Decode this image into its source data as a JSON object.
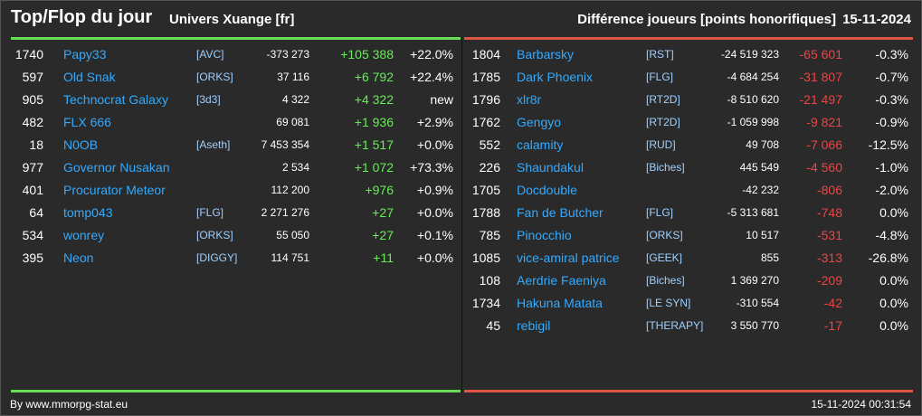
{
  "header": {
    "title": "Top/Flop du jour",
    "universe": "Univers Xuange [fr]",
    "metric": "Différence joueurs [points honorifiques]",
    "date": "15-11-2024"
  },
  "colors": {
    "positive": "#66ee55",
    "negative": "#ee4444",
    "name": "#33aaff"
  },
  "top": [
    {
      "rank": "1740",
      "name": "Papy33",
      "ally": "[AVC]",
      "points": "-373 273",
      "diff": "+105 388",
      "pct": "+22.0%"
    },
    {
      "rank": "597",
      "name": "Old Snak",
      "ally": "[ORKS]",
      "points": "37 116",
      "diff": "+6 792",
      "pct": "+22.4%"
    },
    {
      "rank": "905",
      "name": "Technocrat Galaxy",
      "ally": "[3d3]",
      "points": "4 322",
      "diff": "+4 322",
      "pct": "new"
    },
    {
      "rank": "482",
      "name": "FLX 666",
      "ally": "",
      "points": "69 081",
      "diff": "+1 936",
      "pct": "+2.9%"
    },
    {
      "rank": "18",
      "name": "N0OB",
      "ally": "[Aseth]",
      "points": "7 453 354",
      "diff": "+1 517",
      "pct": "+0.0%"
    },
    {
      "rank": "977",
      "name": "Governor Nusakan",
      "ally": "",
      "points": "2 534",
      "diff": "+1 072",
      "pct": "+73.3%"
    },
    {
      "rank": "401",
      "name": "Procurator Meteor",
      "ally": "",
      "points": "112 200",
      "diff": "+976",
      "pct": "+0.9%"
    },
    {
      "rank": "64",
      "name": "tomp043",
      "ally": "[FLG]",
      "points": "2 271 276",
      "diff": "+27",
      "pct": "+0.0%"
    },
    {
      "rank": "534",
      "name": "wonrey",
      "ally": "[ORKS]",
      "points": "55 050",
      "diff": "+27",
      "pct": "+0.1%"
    },
    {
      "rank": "395",
      "name": "Neon",
      "ally": "[DIGGY]",
      "points": "114 751",
      "diff": "+11",
      "pct": "+0.0%"
    }
  ],
  "flop": [
    {
      "rank": "1804",
      "name": "Barbarsky",
      "ally": "[RST]",
      "points": "-24 519 323",
      "diff": "-65 601",
      "pct": "-0.3%"
    },
    {
      "rank": "1785",
      "name": "Dark Phoenix",
      "ally": "[FLG]",
      "points": "-4 684 254",
      "diff": "-31 807",
      "pct": "-0.7%"
    },
    {
      "rank": "1796",
      "name": "xlr8r",
      "ally": "[RT2D]",
      "points": "-8 510 620",
      "diff": "-21 497",
      "pct": "-0.3%"
    },
    {
      "rank": "1762",
      "name": "Gengyo",
      "ally": "[RT2D]",
      "points": "-1 059 998",
      "diff": "-9 821",
      "pct": "-0.9%"
    },
    {
      "rank": "552",
      "name": "calamity",
      "ally": "[RUD]",
      "points": "49 708",
      "diff": "-7 066",
      "pct": "-12.5%"
    },
    {
      "rank": "226",
      "name": "Shaundakul",
      "ally": "[Biches]",
      "points": "445 549",
      "diff": "-4 560",
      "pct": "-1.0%"
    },
    {
      "rank": "1705",
      "name": "Docdouble",
      "ally": "",
      "points": "-42 232",
      "diff": "-806",
      "pct": "-2.0%"
    },
    {
      "rank": "1788",
      "name": "Fan de Butcher",
      "ally": "[FLG]",
      "points": "-5 313 681",
      "diff": "-748",
      "pct": "0.0%"
    },
    {
      "rank": "785",
      "name": "Pinocchio",
      "ally": "[ORKS]",
      "points": "10 517",
      "diff": "-531",
      "pct": "-4.8%"
    },
    {
      "rank": "1085",
      "name": "vice-amiral patrice",
      "ally": "[GEEK]",
      "points": "855",
      "diff": "-313",
      "pct": "-26.8%"
    },
    {
      "rank": "108",
      "name": "Aerdrie Faeniya",
      "ally": "[Biches]",
      "points": "1 369 270",
      "diff": "-209",
      "pct": "0.0%"
    },
    {
      "rank": "1734",
      "name": "Hakuna Matata",
      "ally": "[LE SYN]",
      "points": "-310 554",
      "diff": "-42",
      "pct": "0.0%"
    },
    {
      "rank": "45",
      "name": "rebigil",
      "ally": "[THERAPY]",
      "points": "3 550 770",
      "diff": "-17",
      "pct": "0.0%"
    }
  ],
  "footer": {
    "source": "By www.mmorpg-stat.eu",
    "timestamp": "15-11-2024 00:31:54"
  }
}
